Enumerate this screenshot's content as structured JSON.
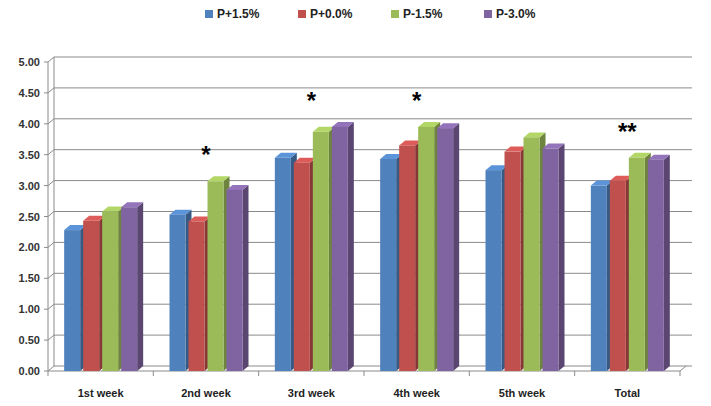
{
  "chart_data": {
    "type": "bar",
    "categories": [
      "1st week",
      "2nd week",
      "3rd week",
      "4th week",
      "5th week",
      "Total"
    ],
    "series": [
      {
        "name": "P+1.5%",
        "color": "#4f81bd",
        "values": [
          2.28,
          2.53,
          3.45,
          3.43,
          3.25,
          3.0
        ]
      },
      {
        "name": "P+0.0%",
        "color": "#c0504d",
        "values": [
          2.43,
          2.42,
          3.37,
          3.65,
          3.55,
          3.08
        ]
      },
      {
        "name": "P-1.5%",
        "color": "#9bbb59",
        "values": [
          2.58,
          3.07,
          3.87,
          3.95,
          3.78,
          3.45
        ]
      },
      {
        "name": "P-3.0%",
        "color": "#8064a2",
        "values": [
          2.65,
          2.93,
          3.95,
          3.93,
          3.6,
          3.42
        ]
      }
    ],
    "annotations": [
      {
        "text": "*",
        "category": "2nd week"
      },
      {
        "text": "*",
        "category": "3rd week"
      },
      {
        "text": "*",
        "category": "4th week"
      },
      {
        "text": "**",
        "category": "Total"
      }
    ],
    "ylim": [
      0,
      5
    ],
    "yticks": [
      {
        "value": 0,
        "label": "0.00"
      },
      {
        "value": 0.5,
        "label": "0.50"
      },
      {
        "value": 1,
        "label": "1.00"
      },
      {
        "value": 1.5,
        "label": "1.50"
      },
      {
        "value": 2,
        "label": "2.00"
      },
      {
        "value": 2.5,
        "label": "2.50"
      },
      {
        "value": 3,
        "label": "3.00"
      },
      {
        "value": 3.5,
        "label": "3.50"
      },
      {
        "value": 4,
        "label": "4.00"
      },
      {
        "value": 4.5,
        "label": "4.50"
      },
      {
        "value": 5,
        "label": "5.00"
      }
    ],
    "grid": true,
    "legend": "top"
  }
}
